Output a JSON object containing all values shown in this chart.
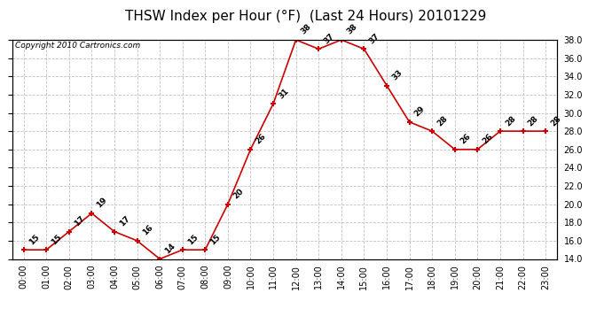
{
  "title": "THSW Index per Hour (°F)  (Last 24 Hours) 20101229",
  "copyright": "Copyright 2010 Cartronics.com",
  "hours": [
    0,
    1,
    2,
    3,
    4,
    5,
    6,
    7,
    8,
    9,
    10,
    11,
    12,
    13,
    14,
    15,
    16,
    17,
    18,
    19,
    20,
    21,
    22,
    23
  ],
  "values": [
    15,
    15,
    17,
    19,
    17,
    16,
    14,
    15,
    15,
    20,
    26,
    31,
    38,
    37,
    38,
    37,
    33,
    29,
    28,
    26,
    26,
    28,
    28,
    28
  ],
  "xlabels": [
    "00:00",
    "01:00",
    "02:00",
    "03:00",
    "04:00",
    "05:00",
    "06:00",
    "07:00",
    "08:00",
    "09:00",
    "10:00",
    "11:00",
    "12:00",
    "13:00",
    "14:00",
    "15:00",
    "16:00",
    "17:00",
    "18:00",
    "19:00",
    "20:00",
    "21:00",
    "22:00",
    "23:00"
  ],
  "ylim": [
    14.0,
    38.0
  ],
  "yticks": [
    14.0,
    16.0,
    18.0,
    20.0,
    22.0,
    24.0,
    26.0,
    28.0,
    30.0,
    32.0,
    34.0,
    36.0,
    38.0
  ],
  "line_color": "#cc0000",
  "marker_color": "#cc0000",
  "bg_color": "#ffffff",
  "plot_bg_color": "#ffffff",
  "grid_color": "#c0c0c0",
  "title_fontsize": 11,
  "label_fontsize": 7,
  "annotation_fontsize": 6.5,
  "copyright_fontsize": 6.5,
  "ann_rotation": 45
}
